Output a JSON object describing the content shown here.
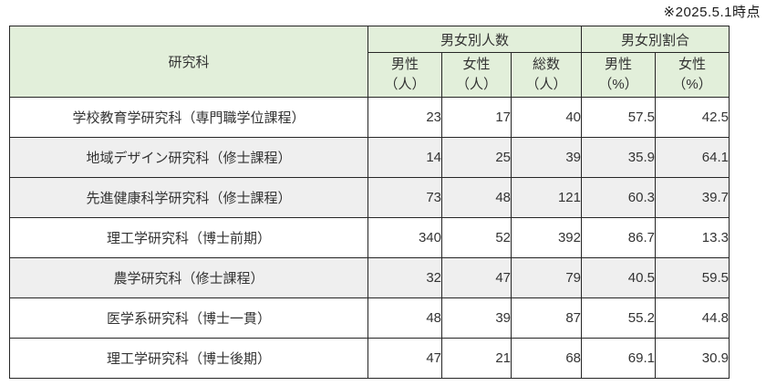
{
  "note": "※2025.5.1時点",
  "colors": {
    "header_bg": "#e2efda",
    "shaded_row_bg": "#efefef",
    "border": "#262626",
    "text": "#333333"
  },
  "table": {
    "col_header": "研究科",
    "groups": [
      {
        "label": "男女別人数"
      },
      {
        "label": "男女別割合"
      }
    ],
    "subheaders": [
      {
        "label": "男性",
        "unit": "（人）"
      },
      {
        "label": "女性",
        "unit": "（人）"
      },
      {
        "label": "総数",
        "unit": "（人）"
      },
      {
        "label": "男性",
        "unit": "（%）"
      },
      {
        "label": "女性",
        "unit": "（%）"
      }
    ],
    "rows": [
      {
        "name": "学校教育学研究科（専門職学位課程）",
        "male": "23",
        "female": "17",
        "total": "40",
        "male_pct": "57.5",
        "female_pct": "42.5"
      },
      {
        "name": "地域デザイン研究科（修士課程）",
        "male": "14",
        "female": "25",
        "total": "39",
        "male_pct": "35.9",
        "female_pct": "64.1"
      },
      {
        "name": "先進健康科学研究科（修士課程）",
        "male": "73",
        "female": "48",
        "total": "121",
        "male_pct": "60.3",
        "female_pct": "39.7"
      },
      {
        "name": "理工学研究科（博士前期）",
        "male": "340",
        "female": "52",
        "total": "392",
        "male_pct": "86.7",
        "female_pct": "13.3"
      },
      {
        "name": "農学研究科（修士課程）",
        "male": "32",
        "female": "47",
        "total": "79",
        "male_pct": "40.5",
        "female_pct": "59.5"
      },
      {
        "name": "医学系研究科（博士一貫）",
        "male": "48",
        "female": "39",
        "total": "87",
        "male_pct": "55.2",
        "female_pct": "44.8"
      },
      {
        "name": "理工学研究科（博士後期）",
        "male": "47",
        "female": "21",
        "total": "68",
        "male_pct": "69.1",
        "female_pct": "30.9"
      }
    ]
  }
}
